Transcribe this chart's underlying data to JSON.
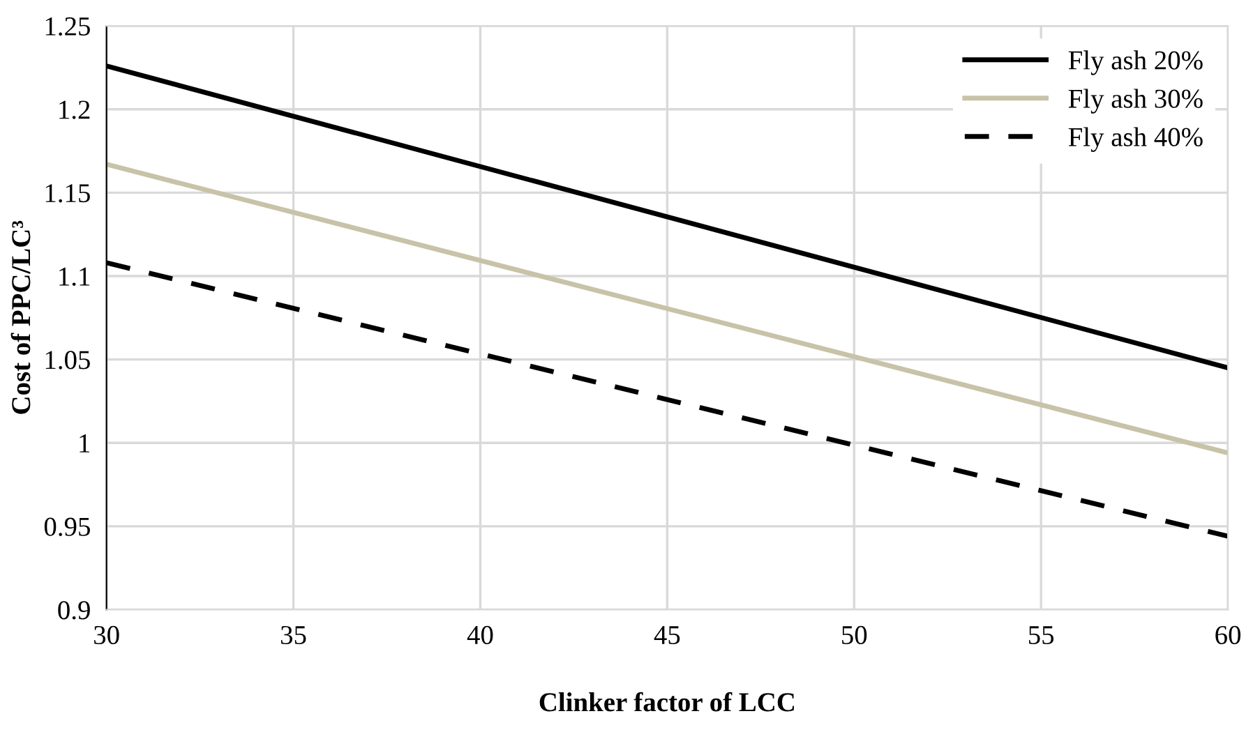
{
  "chart_data": {
    "type": "line",
    "xlabel": "Clinker factor of LCC",
    "ylabel": "Cost of PPC/LC³",
    "x": [
      30,
      60
    ],
    "series": [
      {
        "name": "Fly ash 20%",
        "color": "#000000",
        "values": [
          1.226,
          1.045
        ],
        "line_style": "solid"
      },
      {
        "name": "Fly ash 30%",
        "color": "#c8c3a8",
        "values": [
          1.167,
          0.994
        ],
        "line_style": "solid"
      },
      {
        "name": "Fly ash 40%",
        "color": "#000000",
        "values": [
          1.108,
          0.944
        ],
        "line_style": "dashed"
      }
    ],
    "xlim": [
      30,
      60
    ],
    "xticks": [
      30,
      35,
      40,
      45,
      50,
      55,
      60
    ],
    "ylim": [
      0.9,
      1.25
    ],
    "yticks": [
      0.9,
      0.95,
      1,
      1.05,
      1.1,
      1.15,
      1.2,
      1.25
    ],
    "grid": true,
    "legend": "top right",
    "marker": "none"
  }
}
